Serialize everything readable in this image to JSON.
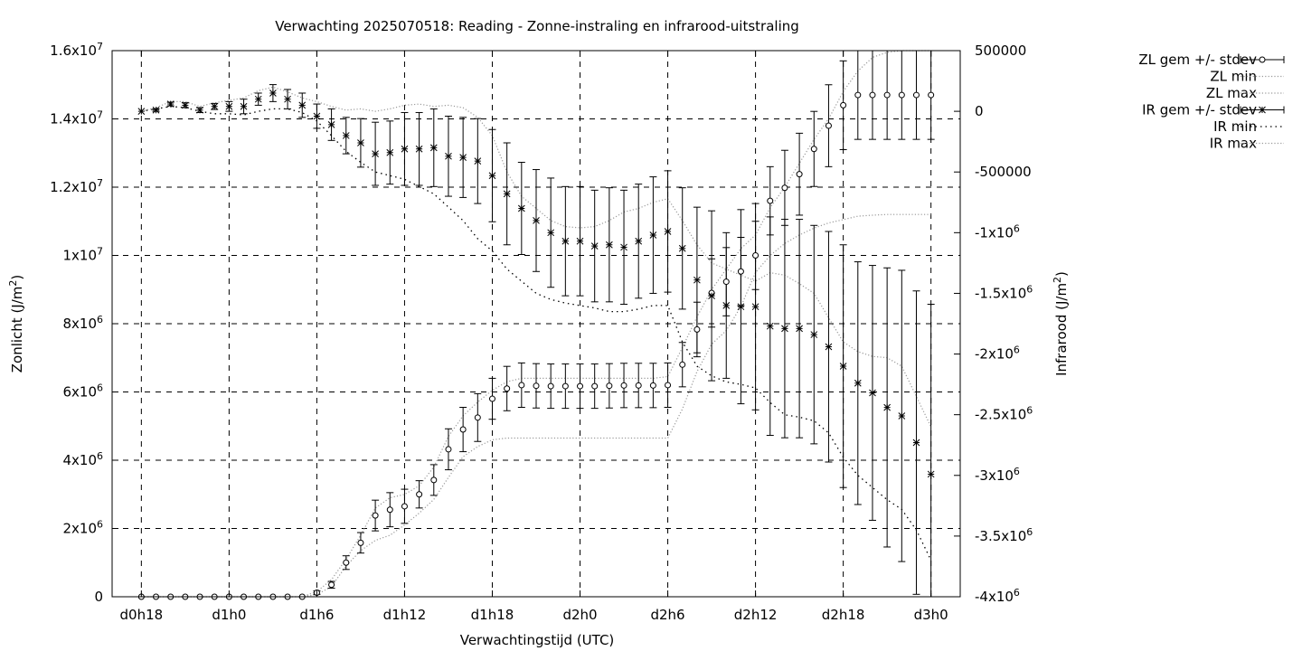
{
  "chart_data": {
    "type": "scatter",
    "title": "Verwachting 2025070518: Reading - Zonne-instraling en infrarood-uitstraling",
    "xlabel": "Verwachtingstijd (UTC)",
    "ylabel": "Zonlicht (J/m²)",
    "y2label": "Infrarood (J/m²)",
    "x_ticks": [
      "d0h18",
      "d1h0",
      "d1h6",
      "d1h12",
      "d1h18",
      "d2h0",
      "d2h6",
      "d2h12",
      "d2h18",
      "d3h0"
    ],
    "x_tick_hours": [
      18,
      24,
      30,
      36,
      42,
      48,
      54,
      60,
      66,
      72
    ],
    "xlim": [
      16,
      74
    ],
    "ylim": [
      0,
      16000000
    ],
    "y2lim": [
      -4000000,
      500000
    ],
    "y_ticks": [
      {
        "value": 0,
        "base": "0",
        "exp": ""
      },
      {
        "value": 2000000,
        "base": "2x10",
        "exp": "6"
      },
      {
        "value": 4000000,
        "base": "4x10",
        "exp": "6"
      },
      {
        "value": 6000000,
        "base": "6x10",
        "exp": "6"
      },
      {
        "value": 8000000,
        "base": "8x10",
        "exp": "6"
      },
      {
        "value": 10000000,
        "base": "1x10",
        "exp": "7"
      },
      {
        "value": 12000000,
        "base": "1.2x10",
        "exp": "7"
      },
      {
        "value": 14000000,
        "base": "1.4x10",
        "exp": "7"
      },
      {
        "value": 16000000,
        "base": "1.6x10",
        "exp": "7"
      }
    ],
    "y2_ticks": [
      {
        "value": 500000,
        "base": "500000",
        "exp": ""
      },
      {
        "value": 0,
        "base": "0",
        "exp": ""
      },
      {
        "value": -500000,
        "base": "-500000",
        "exp": ""
      },
      {
        "value": -1000000,
        "base": "-1x10",
        "exp": "6"
      },
      {
        "value": -1500000,
        "base": "-1.5x10",
        "exp": "6"
      },
      {
        "value": -2000000,
        "base": "-2x10",
        "exp": "6"
      },
      {
        "value": -2500000,
        "base": "-2.5x10",
        "exp": "6"
      },
      {
        "value": -3000000,
        "base": "-3x10",
        "exp": "6"
      },
      {
        "value": -3500000,
        "base": "-3.5x10",
        "exp": "6"
      },
      {
        "value": -4000000,
        "base": "-4x10",
        "exp": "6"
      }
    ],
    "grid": true,
    "legend_position": "outside-right-top",
    "hours": [
      18,
      19,
      20,
      21,
      22,
      23,
      24,
      25,
      26,
      27,
      28,
      29,
      30,
      31,
      32,
      33,
      34,
      35,
      36,
      37,
      38,
      39,
      40,
      41,
      42,
      43,
      44,
      45,
      46,
      47,
      48,
      49,
      50,
      51,
      52,
      53,
      54,
      55,
      56,
      57,
      58,
      59,
      60,
      61,
      62,
      63,
      64,
      65,
      66,
      67,
      68,
      69,
      70,
      71,
      72
    ],
    "series": [
      {
        "name": "ZL gem +/- stdev",
        "axis": "y",
        "style": "errorbars-circle",
        "mean": [
          0,
          0,
          0,
          0,
          0,
          0,
          0,
          0,
          0,
          0,
          0,
          0,
          120000,
          350000,
          1000000,
          1580000,
          2380000,
          2550000,
          2650000,
          3000000,
          3420000,
          4320000,
          4900000,
          5250000,
          5800000,
          6100000,
          6200000,
          6180000,
          6170000,
          6170000,
          6170000,
          6170000,
          6180000,
          6190000,
          6190000,
          6190000,
          6200000,
          6800000,
          7830000,
          8900000,
          9230000,
          9530000,
          10000000,
          11600000,
          11980000,
          12380000,
          13120000,
          13800000,
          14400000,
          14700000,
          14700000,
          14700000,
          14700000,
          14700000,
          14700000
        ],
        "stdev": [
          0,
          0,
          0,
          0,
          0,
          0,
          0,
          0,
          0,
          0,
          0,
          0,
          50000,
          100000,
          200000,
          300000,
          450000,
          500000,
          500000,
          400000,
          450000,
          600000,
          650000,
          700000,
          600000,
          650000,
          650000,
          650000,
          650000,
          650000,
          650000,
          650000,
          650000,
          650000,
          650000,
          650000,
          650000,
          650000,
          800000,
          1000000,
          1000000,
          1000000,
          1000000,
          1000000,
          1100000,
          1200000,
          1100000,
          1200000,
          1300000,
          1300000,
          1300000,
          1300000,
          1300000,
          1300000,
          1300000
        ]
      },
      {
        "name": "ZL min",
        "axis": "y",
        "style": "dotted",
        "values": [
          0,
          0,
          0,
          0,
          0,
          0,
          0,
          0,
          0,
          0,
          0,
          0,
          60000,
          300000,
          900000,
          1350000,
          1650000,
          1800000,
          2100000,
          2450000,
          2850000,
          3500000,
          4100000,
          4400000,
          4600000,
          4650000,
          4650000,
          4650000,
          4650000,
          4650000,
          4650000,
          4650000,
          4650000,
          4650000,
          4650000,
          4650000,
          4650000,
          5500000,
          6600000,
          7400000,
          7800000,
          8500000,
          9500000,
          10000000,
          10350000,
          10600000,
          10800000,
          10950000,
          11050000,
          11150000,
          11180000,
          11200000,
          11200000,
          11200000,
          11200000
        ]
      },
      {
        "name": "ZL max",
        "axis": "y",
        "style": "dotted",
        "values": [
          0,
          0,
          0,
          0,
          0,
          0,
          0,
          0,
          0,
          0,
          0,
          0,
          150000,
          500000,
          1100000,
          1800000,
          2600000,
          2900000,
          3000000,
          3250000,
          3800000,
          4700000,
          5300000,
          5700000,
          6050000,
          6300000,
          6400000,
          6400000,
          6400000,
          6400000,
          6400000,
          6400000,
          6400000,
          6400000,
          6400000,
          6400000,
          6450000,
          7300000,
          8200000,
          9000000,
          9600000,
          10200000,
          10600000,
          11400000,
          12000000,
          12700000,
          13400000,
          14000000,
          14800000,
          15400000,
          15800000,
          15950000,
          16000000,
          16000000,
          16000000
        ]
      },
      {
        "name": "IR gem +/- stdev",
        "axis": "y2",
        "style": "errorbars-star",
        "mean": [
          0,
          10000,
          60000,
          50000,
          10000,
          40000,
          40000,
          40000,
          100000,
          150000,
          100000,
          50000,
          -40000,
          -110000,
          -200000,
          -260000,
          -350000,
          -340000,
          -310000,
          -310000,
          -300000,
          -370000,
          -380000,
          -410000,
          -530000,
          -680000,
          -800000,
          -900000,
          -1000000,
          -1070000,
          -1070000,
          -1110000,
          -1100000,
          -1120000,
          -1070000,
          -1020000,
          -990000,
          -1130000,
          -1390000,
          -1520000,
          -1600000,
          -1610000,
          -1610000,
          -1770000,
          -1790000,
          -1790000,
          -1840000,
          -1940000,
          -2100000,
          -2240000,
          -2320000,
          -2440000,
          -2510000,
          -2730000,
          -2990000
        ],
        "stdev": [
          0,
          10000,
          15000,
          20000,
          20000,
          25000,
          40000,
          60000,
          50000,
          70000,
          80000,
          100000,
          100000,
          130000,
          150000,
          200000,
          260000,
          260000,
          300000,
          300000,
          320000,
          330000,
          330000,
          350000,
          380000,
          420000,
          380000,
          420000,
          450000,
          450000,
          450000,
          460000,
          470000,
          470000,
          470000,
          480000,
          500000,
          500000,
          600000,
          700000,
          600000,
          800000,
          850000,
          900000,
          900000,
          900000,
          900000,
          950000,
          1000000,
          1000000,
          1050000,
          1150000,
          1200000,
          1250000,
          1400000
        ]
      },
      {
        "name": "IR min",
        "axis": "y2",
        "style": "dotted",
        "values": [
          0,
          20000,
          40000,
          30000,
          0,
          -20000,
          -20000,
          -30000,
          0,
          20000,
          20000,
          -10000,
          -80000,
          -200000,
          -330000,
          -420000,
          -500000,
          -530000,
          -560000,
          -620000,
          -680000,
          -790000,
          -900000,
          -1050000,
          -1150000,
          -1300000,
          -1400000,
          -1500000,
          -1550000,
          -1580000,
          -1600000,
          -1620000,
          -1650000,
          -1650000,
          -1630000,
          -1600000,
          -1600000,
          -1900000,
          -2100000,
          -2180000,
          -2230000,
          -2250000,
          -2280000,
          -2400000,
          -2500000,
          -2520000,
          -2550000,
          -2650000,
          -2850000,
          -3000000,
          -3100000,
          -3200000,
          -3280000,
          -3450000,
          -3700000
        ]
      },
      {
        "name": "IR max",
        "axis": "y2",
        "style": "dotted",
        "values": [
          0,
          30000,
          80000,
          80000,
          40000,
          70000,
          90000,
          110000,
          170000,
          200000,
          160000,
          110000,
          80000,
          40000,
          10000,
          20000,
          0,
          20000,
          50000,
          60000,
          40000,
          50000,
          30000,
          -50000,
          -200000,
          -500000,
          -700000,
          -800000,
          -900000,
          -950000,
          -960000,
          -950000,
          -900000,
          -830000,
          -800000,
          -750000,
          -720000,
          -900000,
          -1100000,
          -1250000,
          -1300000,
          -1350000,
          -1400000,
          -1330000,
          -1350000,
          -1420000,
          -1500000,
          -1700000,
          -1900000,
          -1980000,
          -2020000,
          -2030000,
          -2100000,
          -2350000,
          -2600000
        ]
      }
    ]
  }
}
